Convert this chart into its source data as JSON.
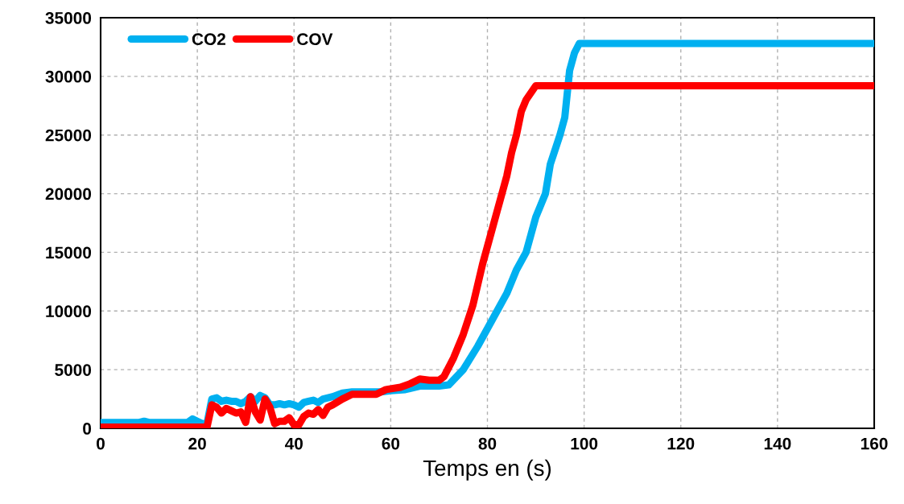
{
  "chart_data": {
    "type": "line",
    "xlabel": "Temps en (s)",
    "xlim": [
      0,
      160
    ],
    "xticks": [
      0,
      20,
      40,
      60,
      80,
      100,
      120,
      140,
      160
    ],
    "ylim": [
      0,
      35000
    ],
    "yticks": [
      0,
      5000,
      10000,
      15000,
      20000,
      25000,
      30000,
      35000
    ],
    "grid": true,
    "legend": "top left",
    "marker": "none",
    "line_style": "solid",
    "series": [
      {
        "name": "CO2",
        "color": "#00b0f0",
        "x": [
          0,
          8,
          9,
          10,
          18,
          19,
          20,
          21,
          22,
          23,
          24,
          25,
          26,
          27,
          28,
          29,
          30,
          31,
          32,
          33,
          34,
          35,
          36,
          37,
          38,
          39,
          40,
          41,
          42,
          43,
          44,
          45,
          46,
          48,
          50,
          52,
          55,
          58,
          60,
          63,
          66,
          68,
          70,
          72,
          75,
          78,
          82,
          84,
          86,
          88,
          89,
          90,
          92,
          93,
          95,
          96,
          97,
          98,
          99,
          160
        ],
        "values": [
          500,
          500,
          600,
          500,
          500,
          800,
          600,
          400,
          400,
          2500,
          2600,
          2300,
          2400,
          2300,
          2300,
          2100,
          2300,
          2700,
          2300,
          2800,
          2600,
          2000,
          2000,
          2100,
          2000,
          2100,
          2000,
          1800,
          2200,
          2300,
          2400,
          2200,
          2500,
          2700,
          3000,
          3100,
          3100,
          3100,
          3200,
          3300,
          3600,
          3600,
          3600,
          3700,
          5000,
          7000,
          10000,
          11500,
          13500,
          15000,
          16500,
          18000,
          20000,
          22500,
          25000,
          26500,
          30500,
          32000,
          32800,
          32800
        ]
      },
      {
        "name": "COV",
        "color": "#ff0000",
        "x": [
          0,
          22,
          23,
          24,
          25,
          26,
          27,
          28,
          29,
          30,
          31,
          32,
          33,
          34,
          35,
          36,
          37,
          38,
          39,
          40,
          41,
          42,
          43,
          44,
          45,
          46,
          47,
          48,
          50,
          52,
          54,
          57,
          59,
          62,
          64,
          66,
          68,
          70,
          71,
          73,
          75,
          77,
          79,
          81,
          82,
          83,
          84,
          85,
          86,
          87,
          88,
          90,
          160
        ],
        "values": [
          100,
          100,
          2000,
          1800,
          1300,
          1700,
          1500,
          1300,
          1400,
          500,
          2700,
          1400,
          700,
          2500,
          1800,
          400,
          600,
          600,
          900,
          300,
          300,
          1000,
          1300,
          1200,
          1600,
          1100,
          1800,
          2000,
          2500,
          2900,
          2900,
          2900,
          3300,
          3500,
          3800,
          4200,
          4100,
          4100,
          4400,
          6000,
          8000,
          10500,
          14000,
          17000,
          18500,
          20000,
          21500,
          23500,
          25000,
          27000,
          28000,
          29200,
          29200
        ]
      }
    ]
  }
}
